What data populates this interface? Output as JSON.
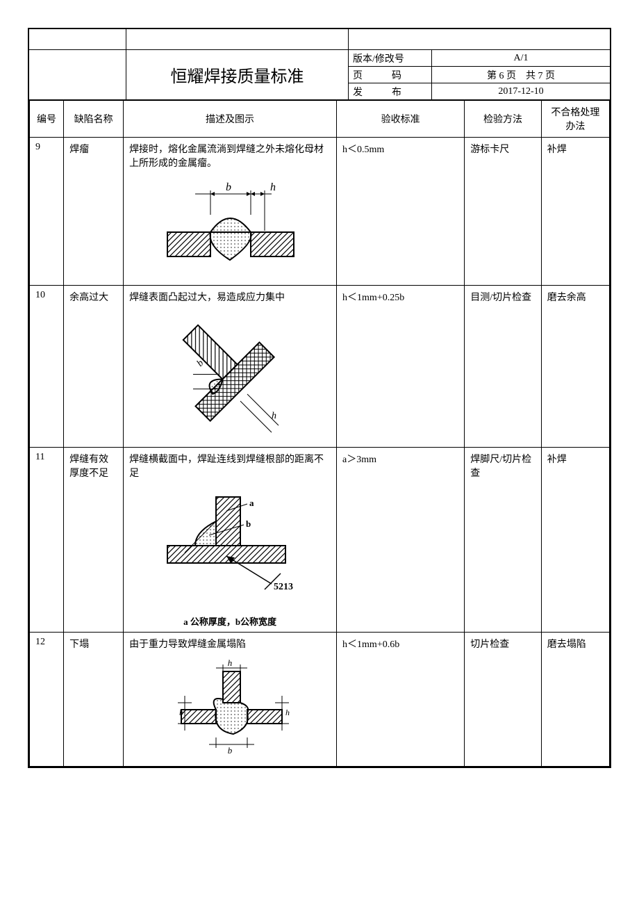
{
  "header": {
    "title": "恒耀焊接质量标准",
    "meta": {
      "version_label": "版本/修改号",
      "version_value": "A/1",
      "page_label": "页　　　码",
      "page_value": "第 6 页　共 7 页",
      "issue_label": "发　　　布",
      "issue_value": "2017-12-10"
    }
  },
  "columns": {
    "no": "编号",
    "name": "缺陷名称",
    "desc": "描述及图示",
    "accept": "验收标准",
    "method": "检验方法",
    "handle": "不合格处理办法"
  },
  "rows": [
    {
      "no": "9",
      "name": "焊瘤",
      "desc": "焊接时，熔化金属流淌到焊缝之外未熔化母材上所形成的金属瘤。",
      "accept": "h＜0.5mm",
      "method": "游标卡尺",
      "handle": "补焊",
      "diagram": "overlap",
      "diagram_labels": {
        "b": "b",
        "h": "h"
      }
    },
    {
      "no": "10",
      "name": "余高过大",
      "desc": "焊缝表面凸起过大，易造成应力集中",
      "accept": "h＜1mm+0.25b",
      "method": "目测/切片检查",
      "handle": "磨去余高",
      "diagram": "excess",
      "diagram_labels": {
        "b": "b",
        "h": "h"
      }
    },
    {
      "no": "11",
      "name": "焊缝有效厚度不足",
      "desc": "焊缝横截面中，焊趾连线到焊缝根部的距离不足",
      "accept": "a＞3mm",
      "method": "焊脚尺/切片检查",
      "handle": "补焊",
      "diagram": "throat",
      "diagram_labels": {
        "a": "a",
        "b": "b",
        "code": "5213"
      },
      "caption": "a 公称厚度，b公称宽度"
    },
    {
      "no": "12",
      "name": "下塌",
      "desc": "由于重力导致焊缝金属塌陷",
      "accept": "h＜1mm+0.6b",
      "method": "切片检查",
      "handle": "磨去塌陷",
      "diagram": "sag",
      "diagram_labels": {
        "b": "b",
        "h": "h"
      }
    }
  ],
  "style": {
    "border_color": "#000000",
    "background": "#ffffff",
    "text_color": "#000000",
    "title_fontsize": 24,
    "body_fontsize": 14,
    "caption_fontsize": 13
  }
}
